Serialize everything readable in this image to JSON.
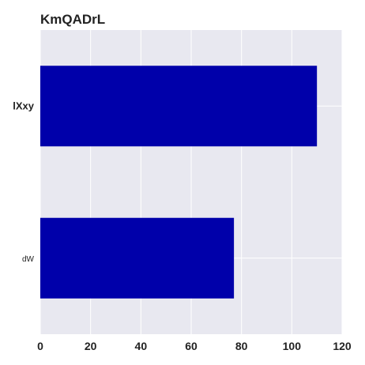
{
  "chart_data": {
    "type": "bar",
    "orientation": "horizontal",
    "title": "KmQADrL",
    "categories": [
      "lXxy",
      "dW"
    ],
    "values": [
      110,
      77
    ],
    "xlim": [
      0,
      120
    ],
    "xticks": [
      "0",
      "20",
      "40",
      "60",
      "80",
      "100",
      "120"
    ],
    "xlabel": "",
    "ylabel": "",
    "grid": true,
    "bar_color": "#0000aa",
    "background_color": "#e8e8f0",
    "grid_color": "#ffffff"
  }
}
